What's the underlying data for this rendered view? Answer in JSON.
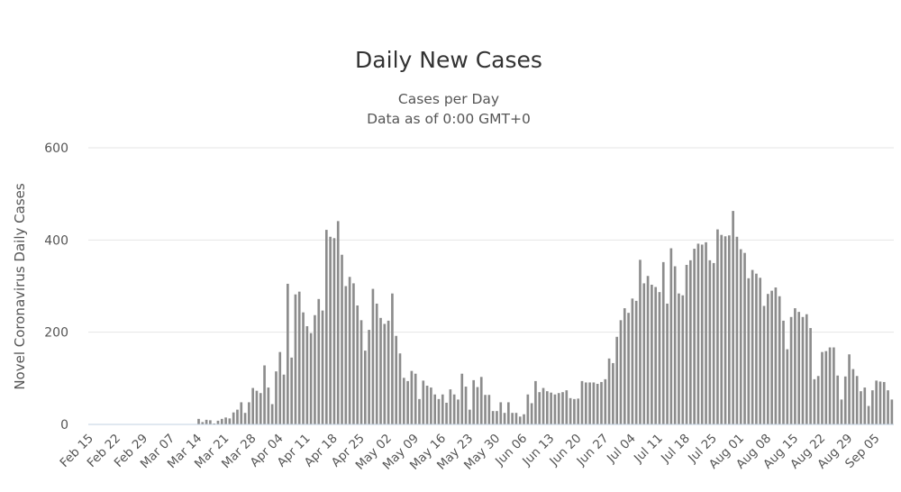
{
  "chart_data": {
    "type": "bar",
    "title": "Daily New Cases",
    "subtitle": [
      "Cases per Day",
      "Data as of 0:00 GMT+0"
    ],
    "xlabel": "",
    "ylabel": "Novel Coronavirus Daily Cases",
    "ylim": [
      0,
      600
    ],
    "yticks": [
      0,
      200,
      400,
      600
    ],
    "start_date": "Feb 15",
    "x_tick_labels": [
      "Feb 15",
      "Feb 22",
      "Feb 29",
      "Mar 07",
      "Mar 14",
      "Mar 21",
      "Mar 28",
      "Apr 04",
      "Apr 11",
      "Apr 18",
      "Apr 25",
      "May 02",
      "May 09",
      "May 16",
      "May 23",
      "May 30",
      "Jun 06",
      "Jun 13",
      "Jun 20",
      "Jun 27",
      "Jul 04",
      "Jul 11",
      "Jul 18",
      "Jul 25",
      "Aug 01",
      "Aug 08",
      "Aug 15",
      "Aug 22",
      "Aug 29",
      "Sep 05"
    ],
    "bar_color": "#8c8c8c",
    "series": [
      {
        "name": "Daily Cases",
        "values": [
          0,
          0,
          0,
          0,
          0,
          0,
          0,
          0,
          0,
          0,
          0,
          0,
          0,
          0,
          0,
          0,
          0,
          0,
          0,
          0,
          0,
          0,
          0,
          0,
          0,
          0,
          0,
          0,
          12,
          5,
          10,
          9,
          2,
          8,
          12,
          15,
          13,
          26,
          32,
          48,
          25,
          48,
          79,
          73,
          68,
          128,
          80,
          44,
          115,
          157,
          108,
          305,
          145,
          282,
          288,
          243,
          213,
          198,
          237,
          272,
          247,
          422,
          407,
          404,
          441,
          368,
          300,
          320,
          306,
          258,
          226,
          160,
          205,
          294,
          262,
          231,
          218,
          225,
          284,
          192,
          154,
          101,
          94,
          116,
          110,
          55,
          95,
          84,
          80,
          65,
          55,
          65,
          47,
          76,
          65,
          54,
          110,
          82,
          32,
          96,
          81,
          103,
          64,
          64,
          29,
          29,
          48,
          25,
          48,
          25,
          25,
          17,
          22,
          65,
          46,
          94,
          70,
          79,
          72,
          69,
          65,
          68,
          70,
          74,
          57,
          55,
          56,
          94,
          91,
          91,
          91,
          88,
          92,
          98,
          143,
          133,
          190,
          226,
          252,
          242,
          273,
          268,
          357,
          306,
          322,
          303,
          298,
          287,
          352,
          262,
          382,
          343,
          284,
          280,
          346,
          356,
          381,
          392,
          390,
          395,
          356,
          350,
          423,
          411,
          408,
          410,
          463,
          407,
          380,
          372,
          317,
          335,
          327,
          318,
          257,
          283,
          290,
          297,
          278,
          225,
          163,
          233,
          252,
          244,
          233,
          239,
          209,
          98,
          105,
          157,
          159,
          167,
          167,
          106,
          54,
          104,
          152,
          120,
          105,
          72,
          80,
          40,
          74,
          95,
          93,
          92,
          74,
          54
        ]
      }
    ]
  }
}
